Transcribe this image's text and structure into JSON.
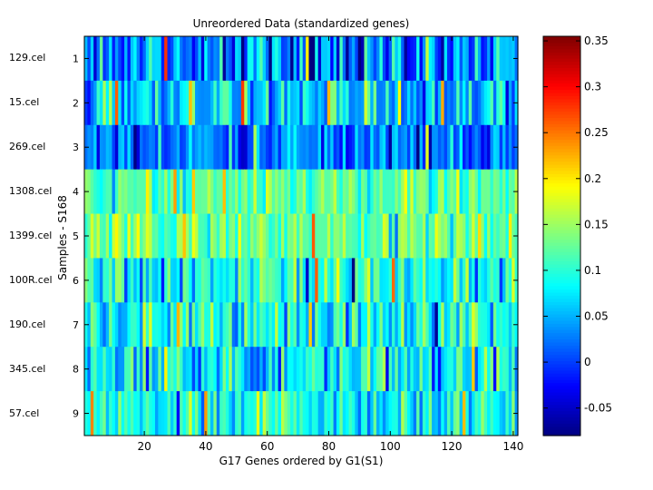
{
  "chart_data": {
    "type": "heatmap",
    "title": "Unreordered Data (standardized genes)",
    "xlabel": "G17 Genes ordered by G1(S1)",
    "ylabel": "Samples - S168",
    "xlim": [
      1,
      141
    ],
    "x_ticks": [
      20,
      40,
      60,
      80,
      100,
      120,
      140
    ],
    "rows": [
      {
        "index": 1,
        "name": "129.cel",
        "seed": 11,
        "base": 0.04,
        "spread": 0.09
      },
      {
        "index": 2,
        "name": "15.cel",
        "seed": 23,
        "base": 0.06,
        "spread": 0.08
      },
      {
        "index": 3,
        "name": "269.cel",
        "seed": 37,
        "base": 0.02,
        "spread": 0.07
      },
      {
        "index": 4,
        "name": "1308.cel",
        "seed": 41,
        "base": 0.12,
        "spread": 0.05
      },
      {
        "index": 5,
        "name": "1399.cel",
        "seed": 53,
        "base": 0.13,
        "spread": 0.05
      },
      {
        "index": 6,
        "name": "100R.cel",
        "seed": 67,
        "base": 0.1,
        "spread": 0.08
      },
      {
        "index": 7,
        "name": "190.cel",
        "seed": 71,
        "base": 0.09,
        "spread": 0.07
      },
      {
        "index": 8,
        "name": "345.cel",
        "seed": 83,
        "base": 0.07,
        "spread": 0.08
      },
      {
        "index": 9,
        "name": "57.cel",
        "seed": 97,
        "base": 0.09,
        "spread": 0.06
      }
    ],
    "colorbar": {
      "colormap": "jet",
      "range": [
        -0.08,
        0.355
      ],
      "ticks": [
        "0.35",
        "0.3",
        "0.25",
        "0.2",
        "0.15",
        "0.1",
        "0.05",
        "0",
        "-0.05"
      ],
      "tick_values": [
        0.35,
        0.3,
        0.25,
        0.2,
        0.15,
        0.1,
        0.05,
        0,
        -0.05
      ]
    }
  }
}
